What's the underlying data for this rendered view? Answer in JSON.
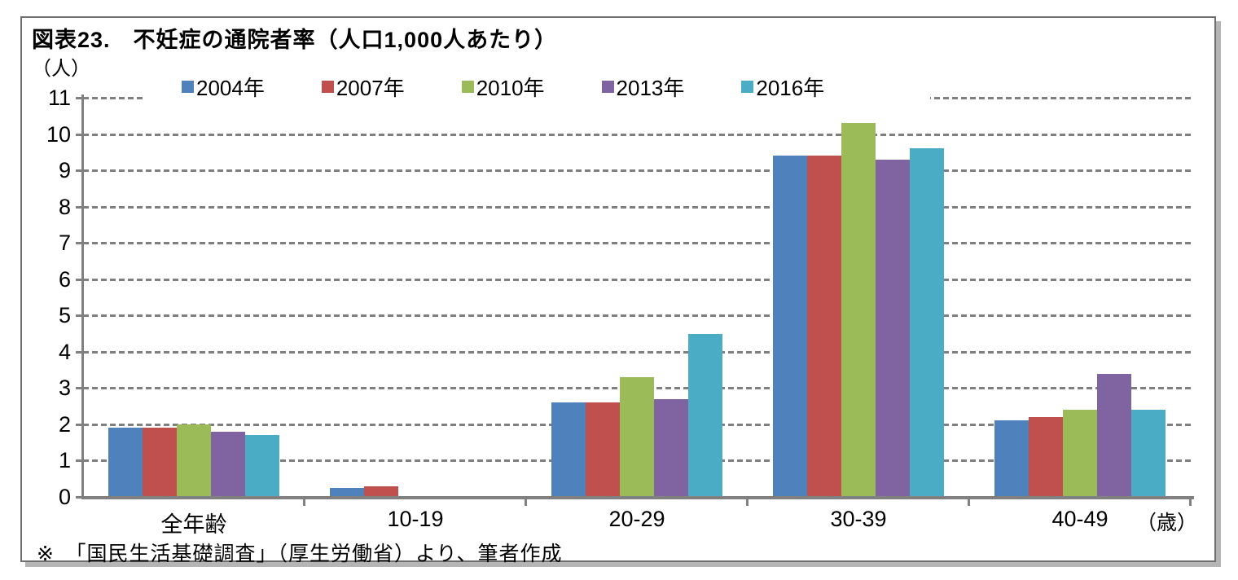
{
  "figure": {
    "title": "図表23.　不妊症の通院者率（人口1,000人あたり）",
    "y_unit_label": "（人）",
    "x_unit_label": "（歳）",
    "footnote": "※　「国民生活基礎調査」（厚生労働省）より、筆者作成"
  },
  "chart_data": {
    "type": "bar",
    "title": "図表23.　不妊症の通院者率（人口1,000人あたり）",
    "ylabel": "（人）",
    "xlabel": "（歳）",
    "categories": [
      "全年齢",
      "10-19",
      "20-29",
      "30-39",
      "40-49"
    ],
    "series": [
      {
        "name": "2004年",
        "color": "#4F81BD",
        "values": [
          1.9,
          0.25,
          2.6,
          9.4,
          2.1
        ]
      },
      {
        "name": "2007年",
        "color": "#C0504D",
        "values": [
          1.9,
          0.3,
          2.6,
          9.4,
          2.2
        ]
      },
      {
        "name": "2010年",
        "color": "#9BBB59",
        "values": [
          2.0,
          0,
          3.3,
          10.3,
          2.4
        ]
      },
      {
        "name": "2013年",
        "color": "#8064A2",
        "values": [
          1.8,
          0,
          2.7,
          9.3,
          3.4
        ]
      },
      {
        "name": "2016年",
        "color": "#4BACC6",
        "values": [
          1.7,
          0,
          4.5,
          9.6,
          2.4
        ]
      }
    ],
    "ylim": [
      0,
      11
    ],
    "ytick_interval": 1,
    "yticks": [
      0,
      1,
      2,
      3,
      4,
      5,
      6,
      7,
      8,
      9,
      10,
      11
    ],
    "grid": "horizontal-dashed",
    "legend_position": "top",
    "axis_color": "#808080",
    "grid_color": "#7f7f7f",
    "source_note": "※　「国民生活基礎調査」（厚生労働省）より、筆者作成"
  }
}
